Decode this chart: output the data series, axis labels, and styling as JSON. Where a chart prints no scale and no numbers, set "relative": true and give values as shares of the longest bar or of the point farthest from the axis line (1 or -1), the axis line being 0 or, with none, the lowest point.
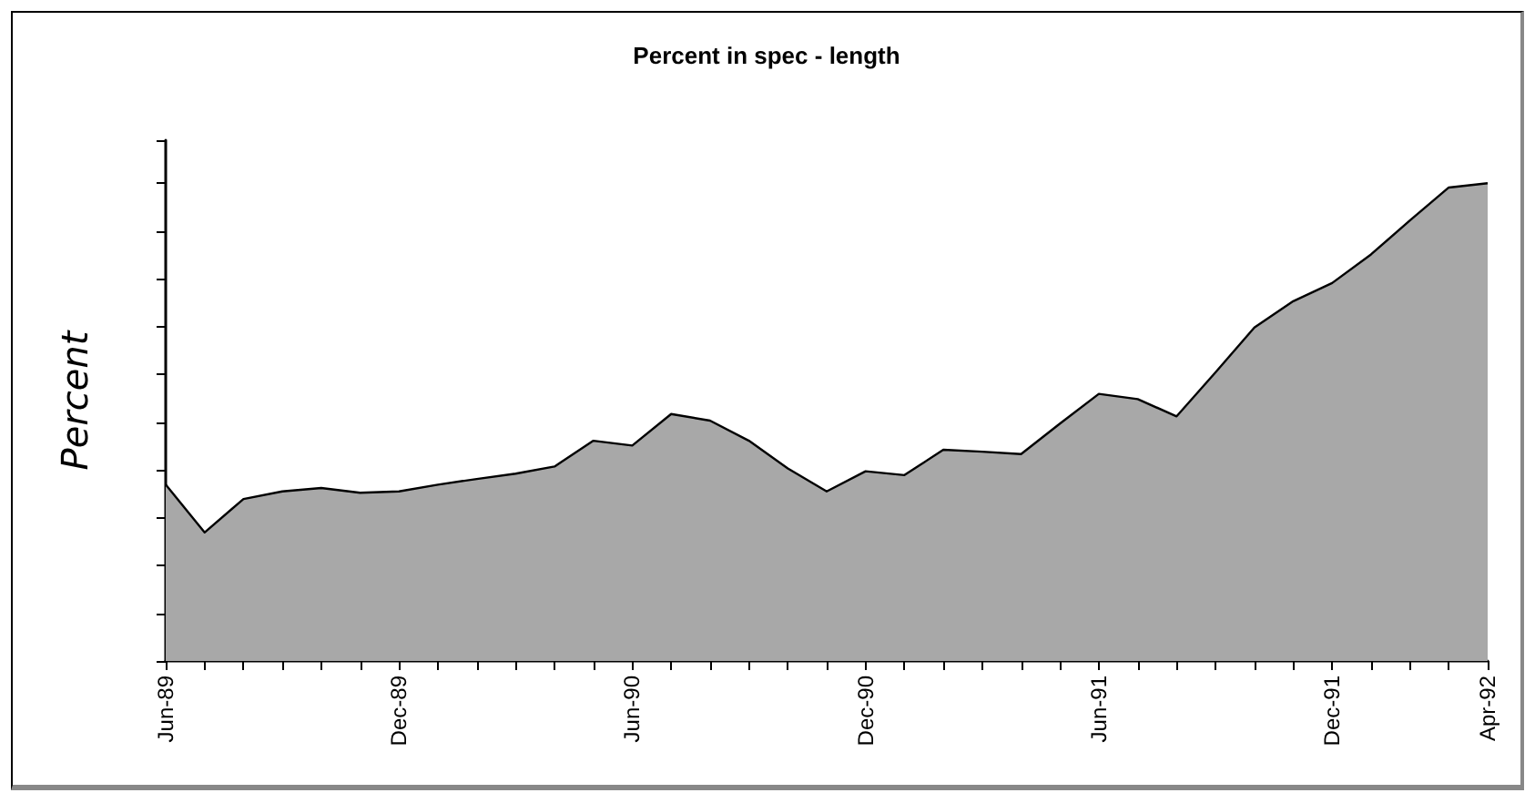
{
  "chart_data": {
    "type": "area",
    "title": "Percent in spec - length",
    "ylabel": "Percent",
    "relative": true,
    "color": "#a8a8a8",
    "categories": [
      "Jun-89",
      null,
      null,
      null,
      null,
      null,
      "Dec-89",
      null,
      null,
      null,
      null,
      null,
      "Jun-90",
      null,
      null,
      null,
      null,
      null,
      "Dec-90",
      null,
      null,
      null,
      null,
      null,
      "Jun-91",
      null,
      null,
      null,
      null,
      null,
      "Dec-91",
      null,
      null,
      null,
      "Apr-92"
    ],
    "values": [
      0.369,
      0.269,
      0.339,
      0.355,
      0.362,
      0.352,
      0.355,
      0.369,
      0.381,
      0.392,
      0.407,
      0.461,
      0.451,
      0.517,
      0.503,
      0.461,
      0.403,
      0.355,
      0.397,
      0.389,
      0.442,
      0.438,
      0.433,
      0.497,
      0.559,
      0.548,
      0.512,
      0.604,
      0.698,
      0.753,
      0.791,
      0.851,
      0.922,
      0.991,
      1
    ]
  }
}
